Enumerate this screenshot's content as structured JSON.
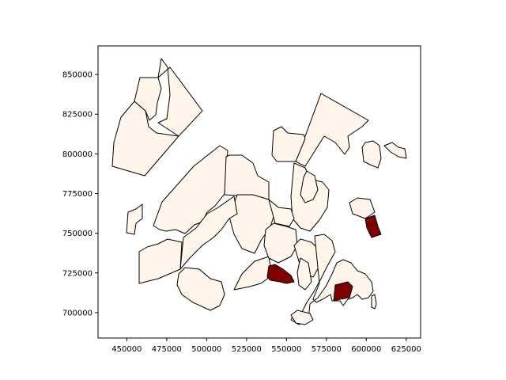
{
  "map": {
    "x_axis": {
      "range": [
        432000,
        634000
      ],
      "tick_labels": [
        "450000",
        "475000",
        "500000",
        "525000",
        "550000",
        "575000",
        "600000",
        "625000"
      ],
      "ticks": [
        450000,
        475000,
        500000,
        525000,
        550000,
        575000,
        600000,
        625000
      ]
    },
    "y_axis": {
      "range": [
        684000,
        868000
      ],
      "tick_labels": [
        "700000",
        "725000",
        "750000",
        "775000",
        "800000",
        "825000",
        "850000"
      ],
      "ticks": [
        700000,
        725000,
        750000,
        775000,
        800000,
        825000,
        850000
      ]
    },
    "fill_colors": {
      "base": "#fff5eb",
      "highlight": "#7f0000"
    },
    "regions": [
      {
        "id": "north-west-large",
        "value": "base"
      },
      {
        "id": "north-west-top",
        "value": "base"
      },
      {
        "id": "north-west-right",
        "value": "base"
      },
      {
        "id": "north-central-long",
        "value": "base"
      },
      {
        "id": "central-upper-left",
        "value": "base"
      },
      {
        "id": "central-upper-right",
        "value": "base"
      },
      {
        "id": "north-east-tall",
        "value": "base"
      },
      {
        "id": "north-east-small",
        "value": "base"
      },
      {
        "id": "north-east-hook",
        "value": "base"
      },
      {
        "id": "east-islands-1",
        "value": "base"
      },
      {
        "id": "east-islands-2",
        "value": "base"
      },
      {
        "id": "east-coastal",
        "value": "highlight"
      },
      {
        "id": "east-coastal-base",
        "value": "base"
      },
      {
        "id": "west-fragment",
        "value": "base"
      },
      {
        "id": "west-lower",
        "value": "base"
      },
      {
        "id": "west-diagonal",
        "value": "base"
      },
      {
        "id": "central-middle",
        "value": "base"
      },
      {
        "id": "central-east-tall",
        "value": "base"
      },
      {
        "id": "central-small",
        "value": "base"
      },
      {
        "id": "south-west-round",
        "value": "base"
      },
      {
        "id": "south-central",
        "value": "base"
      },
      {
        "id": "south-central-highlight",
        "value": "highlight"
      },
      {
        "id": "south-east-1",
        "value": "base"
      },
      {
        "id": "south-east-2",
        "value": "base"
      },
      {
        "id": "south-east-3",
        "value": "base"
      },
      {
        "id": "south-east-highlight",
        "value": "highlight"
      },
      {
        "id": "south-east-4",
        "value": "base"
      },
      {
        "id": "south-tip",
        "value": "base"
      }
    ]
  }
}
